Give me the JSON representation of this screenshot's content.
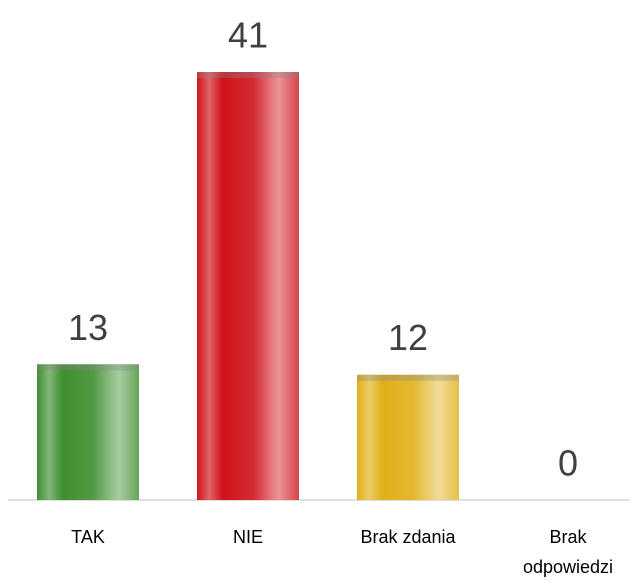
{
  "chart_data": {
    "type": "bar",
    "categories": [
      "TAK",
      "NIE",
      "Brak zdania",
      "Brak odpowiedzi"
    ],
    "values": [
      13,
      41,
      12,
      0
    ],
    "colors": [
      "#3f8f2f",
      "#d0121a",
      "#e0b018",
      "#4472c4"
    ]
  }
}
